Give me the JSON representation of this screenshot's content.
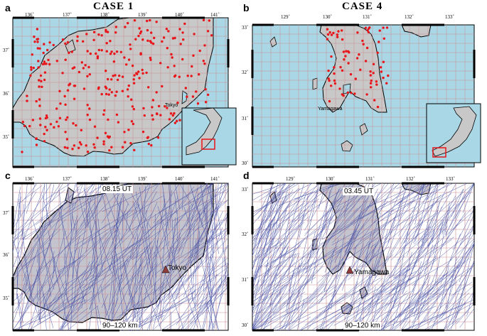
{
  "header": {
    "left_title": "CASE 1",
    "right_title": "CASE 4"
  },
  "panels": {
    "a": {
      "letter": "a",
      "lon_ticks": [
        "136˚",
        "137˚",
        "138˚",
        "139˚",
        "140˚",
        "141˚"
      ],
      "lat_ticks": [
        "37˚",
        "36˚",
        "35˚"
      ],
      "city": "Tokyo"
    },
    "b": {
      "letter": "b",
      "lon_ticks": [
        "129˚",
        "130˚",
        "131˚",
        "132˚",
        "133˚"
      ],
      "lat_ticks": [
        "33˚",
        "32˚",
        "31˚",
        "30˚"
      ],
      "city": "Yamagawa"
    },
    "c": {
      "letter": "c",
      "lon_ticks": [
        "136˚",
        "137˚",
        "138˚",
        "139˚",
        "140˚",
        "141˚"
      ],
      "lat_ticks": [
        "37˚",
        "36˚",
        "35˚"
      ],
      "city": "Tokyo",
      "time": "08.15 UT",
      "altitude": "90–120 km"
    },
    "d": {
      "letter": "d",
      "lon_ticks": [
        "129˚",
        "130˚",
        "131˚",
        "132˚",
        "133˚"
      ],
      "lat_ticks": [
        "33˚",
        "32˚",
        "31˚",
        "30˚"
      ],
      "city": "Yamagawa",
      "time": "03.45 UT",
      "altitude": "90–120 km"
    }
  },
  "colors": {
    "ocean": "#a9d7e6",
    "land": "#c8c8c8",
    "land_dark": "#b9b9c6",
    "grid": "#c98d8f",
    "station": "#e8161a",
    "track": "#3a46a0",
    "marker": "#8f3b3b",
    "inset_box": "#e8161a"
  }
}
